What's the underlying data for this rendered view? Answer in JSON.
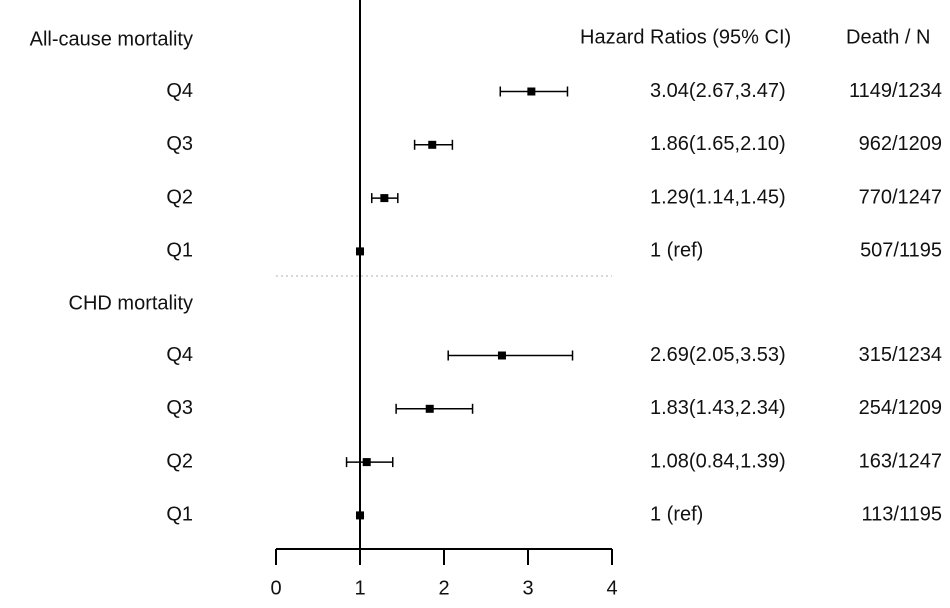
{
  "chart_data": {
    "type": "forest",
    "column_headers": [
      "Hazard Ratios (95% CI)",
      "Death / N"
    ],
    "groups": [
      {
        "name": "All-cause mortality",
        "categories": [
          "Q4",
          "Q3",
          "Q2",
          "Q1"
        ],
        "values": [
          3.04,
          1.86,
          1.29,
          1
        ],
        "lower": [
          2.67,
          1.65,
          1.14,
          null
        ],
        "upper": [
          3.47,
          2.1,
          1.45,
          null
        ],
        "value_labels": [
          "3.04(2.67,3.47)",
          "1.86(1.65,2.10)",
          "1.29(1.14,1.45)",
          "1 (ref)"
        ],
        "death_n": [
          "1149/1234",
          "962/1209",
          "770/1247",
          "507/1195"
        ]
      },
      {
        "name": "CHD mortality",
        "categories": [
          "Q4",
          "Q3",
          "Q2",
          "Q1"
        ],
        "values": [
          2.69,
          1.83,
          1.08,
          1
        ],
        "lower": [
          2.05,
          1.43,
          0.84,
          null
        ],
        "upper": [
          3.53,
          2.34,
          1.39,
          null
        ],
        "value_labels": [
          "2.69(2.05,3.53)",
          "1.83(1.43,2.34)",
          "1.08(0.84,1.39)",
          "1 (ref)"
        ],
        "death_n": [
          "315/1234",
          "254/1209",
          "163/1247",
          "113/1195"
        ]
      }
    ],
    "xlim": [
      0,
      4
    ],
    "xticks": [
      0,
      1,
      2,
      3,
      4
    ],
    "reference_line": 1,
    "color": "#000000"
  }
}
